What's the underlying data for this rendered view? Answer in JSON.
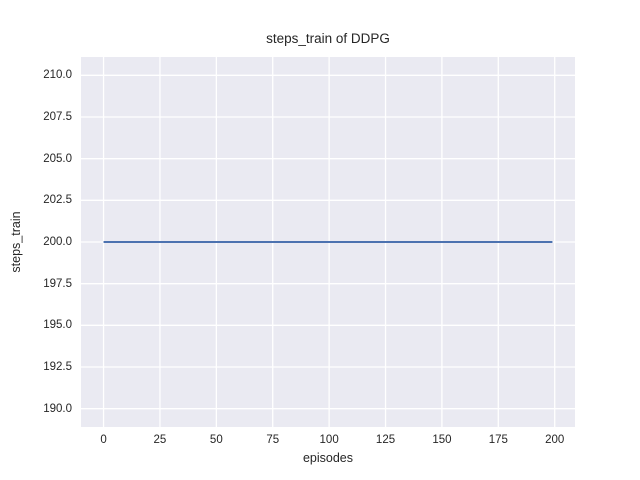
{
  "chart_data": {
    "type": "line",
    "title": "steps_train of DDPG",
    "xlabel": "episodes",
    "ylabel": "steps_train",
    "xlim": [
      -10,
      209
    ],
    "ylim": [
      188.9,
      211.1
    ],
    "xtick_values": [
      0,
      25,
      50,
      75,
      100,
      125,
      150,
      175,
      200
    ],
    "xtick_labels": [
      "0",
      "25",
      "50",
      "75",
      "100",
      "125",
      "150",
      "175",
      "200"
    ],
    "ytick_values": [
      190.0,
      192.5,
      195.0,
      197.5,
      200.0,
      202.5,
      205.0,
      207.5,
      210.0
    ],
    "ytick_labels": [
      "190.0",
      "192.5",
      "195.0",
      "197.5",
      "200.0",
      "202.5",
      "205.0",
      "207.5",
      "210.0"
    ],
    "grid": true,
    "legend": "none",
    "colors": {
      "plot_background": "#eaeaf2",
      "grid_line": "#ffffff",
      "series_line": "#4c72b0",
      "text": "#262626",
      "figure_background": "#ffffff"
    },
    "series": [
      {
        "name": "steps_train",
        "color": "#4c72b0",
        "x": [
          0,
          199
        ],
        "y": [
          200.0,
          200.0
        ],
        "note": "constant value 200 for all episodes 0-199"
      }
    ]
  }
}
